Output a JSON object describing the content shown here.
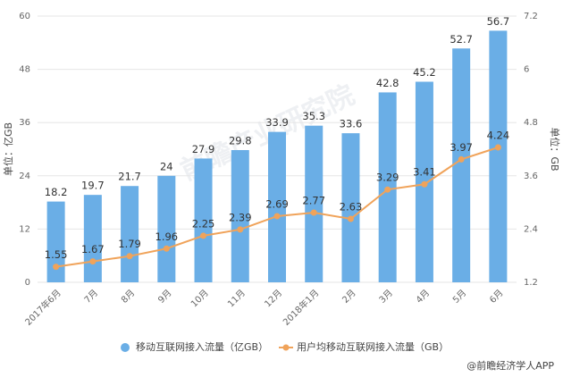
{
  "chart_data": {
    "type": "bar",
    "watermark": "前瞻产业研究院",
    "categories": [
      "2017年6月",
      "7月",
      "8月",
      "9月",
      "10月",
      "11月",
      "12月",
      "2018年1月",
      "2月",
      "3月",
      "4月",
      "5月",
      "6月"
    ],
    "series": [
      {
        "name": "移动互联网接入流量（亿GB）",
        "type": "bar",
        "color": "#6aaee6",
        "values": [
          18.2,
          19.7,
          21.7,
          24,
          27.9,
          29.8,
          33.9,
          35.3,
          33.6,
          42.8,
          45.2,
          52.7,
          56.7
        ]
      },
      {
        "name": "用户均移动互联网接入流量（GB）",
        "type": "line",
        "axis": "y2",
        "color": "#f0a35a",
        "values": [
          1.55,
          1.67,
          1.79,
          1.96,
          2.25,
          2.39,
          2.69,
          2.77,
          2.63,
          3.29,
          3.41,
          3.97,
          4.24
        ]
      }
    ],
    "ylabel": "单位：亿GB",
    "y2label": "单位：GB",
    "ylim": [
      0,
      60
    ],
    "yticks": [
      0,
      12,
      24,
      36,
      48,
      60
    ],
    "y2lim": [
      1.2,
      7.2
    ],
    "y2ticks": [
      1.2,
      2.4,
      3.6,
      4.8,
      6,
      7.2
    ],
    "grid": true,
    "source": "@前瞻经济学人APP"
  }
}
